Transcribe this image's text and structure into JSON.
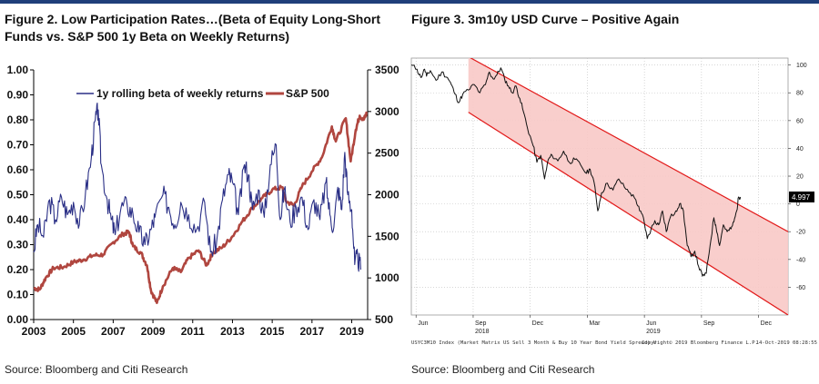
{
  "figure2": {
    "title": "Figure 2. Low Participation Rates…(Beta of Equity Long-Short Funds vs. S&P 500 1y Beta on Weekly Returns)",
    "source": "Source: Bloomberg and Citi Research"
  },
  "figure3": {
    "title": "Figure 3. 3m10y USD Curve – Positive Again",
    "source": "Source: Bloomberg and Citi Research",
    "footer_left": "USYC3M10 Index (Market Matrix US Sell 3 Month & Buy 10 Year Bond Yield Spread) U",
    "footer_mid": "Copyright© 2019 Bloomberg Finance L.P.",
    "footer_right": "14-Oct-2019 08:28:55",
    "last_value_label": "4.997"
  },
  "chart_data": [
    {
      "type": "line",
      "title": "Figure 2. Low Participation Rates…(Beta of Equity Long-Short Funds vs. S&P 500 1y Beta on Weekly Returns)",
      "x_ticks": [
        "2003",
        "2005",
        "2007",
        "2009",
        "2011",
        "2013",
        "2015",
        "2017",
        "2019"
      ],
      "xlim": [
        2003,
        2019.8
      ],
      "y_left": {
        "lim": [
          0,
          1
        ],
        "ticks": [
          "0.00",
          "0.10",
          "0.20",
          "0.30",
          "0.40",
          "0.50",
          "0.60",
          "0.70",
          "0.80",
          "0.90",
          "1.00"
        ]
      },
      "y_right": {
        "lim": [
          500,
          3500
        ],
        "ticks": [
          "500",
          "1000",
          "1500",
          "2000",
          "2500",
          "3000",
          "3500"
        ]
      },
      "series": [
        {
          "name": "1y rolling beta of weekly returns",
          "axis": "left",
          "color": "#2a2f86",
          "points": [
            [
              2003.0,
              0.27
            ],
            [
              2003.2,
              0.38
            ],
            [
              2003.5,
              0.33
            ],
            [
              2003.8,
              0.48
            ],
            [
              2004.1,
              0.4
            ],
            [
              2004.4,
              0.49
            ],
            [
              2004.7,
              0.42
            ],
            [
              2005.0,
              0.47
            ],
            [
              2005.3,
              0.38
            ],
            [
              2005.6,
              0.5
            ],
            [
              2005.9,
              0.65
            ],
            [
              2006.1,
              0.8
            ],
            [
              2006.25,
              0.84
            ],
            [
              2006.4,
              0.62
            ],
            [
              2006.7,
              0.48
            ],
            [
              2006.9,
              0.4
            ],
            [
              2007.1,
              0.34
            ],
            [
              2007.4,
              0.45
            ],
            [
              2007.7,
              0.46
            ],
            [
              2008.0,
              0.42
            ],
            [
              2008.3,
              0.35
            ],
            [
              2008.6,
              0.3
            ],
            [
              2008.9,
              0.36
            ],
            [
              2009.1,
              0.41
            ],
            [
              2009.5,
              0.5
            ],
            [
              2009.8,
              0.45
            ],
            [
              2010.1,
              0.38
            ],
            [
              2010.4,
              0.47
            ],
            [
              2010.8,
              0.42
            ],
            [
              2011.2,
              0.36
            ],
            [
              2011.6,
              0.47
            ],
            [
              2011.9,
              0.27
            ],
            [
              2012.2,
              0.31
            ],
            [
              2012.5,
              0.48
            ],
            [
              2012.8,
              0.58
            ],
            [
              2013.0,
              0.55
            ],
            [
              2013.3,
              0.42
            ],
            [
              2013.6,
              0.62
            ],
            [
              2013.8,
              0.58
            ],
            [
              2014.0,
              0.44
            ],
            [
              2014.3,
              0.52
            ],
            [
              2014.6,
              0.41
            ],
            [
              2014.9,
              0.62
            ],
            [
              2015.2,
              0.7
            ],
            [
              2015.4,
              0.4
            ],
            [
              2015.6,
              0.52
            ],
            [
              2015.9,
              0.39
            ],
            [
              2016.2,
              0.45
            ],
            [
              2016.5,
              0.49
            ],
            [
              2016.8,
              0.36
            ],
            [
              2017.1,
              0.48
            ],
            [
              2017.4,
              0.4
            ],
            [
              2017.7,
              0.55
            ],
            [
              2017.9,
              0.42
            ],
            [
              2018.1,
              0.37
            ],
            [
              2018.3,
              0.53
            ],
            [
              2018.5,
              0.44
            ],
            [
              2018.65,
              0.67
            ],
            [
              2018.8,
              0.5
            ],
            [
              2019.0,
              0.44
            ],
            [
              2019.15,
              0.22
            ],
            [
              2019.3,
              0.25
            ],
            [
              2019.45,
              0.2
            ]
          ]
        },
        {
          "name": "S&P 500",
          "axis": "right",
          "color": "#b0463f",
          "points": [
            [
              2003.0,
              880
            ],
            [
              2003.3,
              860
            ],
            [
              2003.6,
              1000
            ],
            [
              2004.0,
              1120
            ],
            [
              2004.5,
              1130
            ],
            [
              2005.0,
              1190
            ],
            [
              2005.5,
              1220
            ],
            [
              2006.0,
              1270
            ],
            [
              2006.5,
              1280
            ],
            [
              2007.0,
              1430
            ],
            [
              2007.5,
              1530
            ],
            [
              2007.8,
              1550
            ],
            [
              2008.0,
              1380
            ],
            [
              2008.4,
              1300
            ],
            [
              2008.7,
              1150
            ],
            [
              2008.9,
              850
            ],
            [
              2009.2,
              700
            ],
            [
              2009.5,
              900
            ],
            [
              2010.0,
              1120
            ],
            [
              2010.4,
              1070
            ],
            [
              2010.8,
              1240
            ],
            [
              2011.3,
              1330
            ],
            [
              2011.7,
              1150
            ],
            [
              2012.0,
              1300
            ],
            [
              2012.5,
              1370
            ],
            [
              2013.0,
              1500
            ],
            [
              2013.5,
              1680
            ],
            [
              2014.0,
              1840
            ],
            [
              2014.5,
              1960
            ],
            [
              2015.0,
              2060
            ],
            [
              2015.5,
              2090
            ],
            [
              2015.7,
              1920
            ],
            [
              2016.1,
              1870
            ],
            [
              2016.5,
              2100
            ],
            [
              2017.0,
              2280
            ],
            [
              2017.5,
              2450
            ],
            [
              2018.0,
              2820
            ],
            [
              2018.2,
              2640
            ],
            [
              2018.7,
              2920
            ],
            [
              2018.95,
              2400
            ],
            [
              2019.2,
              2780
            ],
            [
              2019.4,
              2950
            ],
            [
              2019.6,
              2900
            ],
            [
              2019.75,
              2980
            ]
          ]
        }
      ]
    },
    {
      "type": "line",
      "title": "Figure 3. 3m10y USD Curve – Positive Again",
      "x_ticks": [
        {
          "label": "Jun",
          "year": "",
          "t": 0.25
        },
        {
          "label": "Sep",
          "year": "2018",
          "t": 3.25
        },
        {
          "label": "Dec",
          "year": "",
          "t": 6.25
        },
        {
          "label": "Mar",
          "year": "",
          "t": 9.25
        },
        {
          "label": "Jun",
          "year": "2019",
          "t": 12.25
        },
        {
          "label": "Sep",
          "year": "",
          "t": 15.25
        },
        {
          "label": "Dec",
          "year": "",
          "t": 18.25
        }
      ],
      "xlim": [
        0,
        19.8
      ],
      "ylim": [
        -80,
        105
      ],
      "y_ticks": [
        100,
        80,
        60,
        40,
        20,
        0,
        -20,
        -40,
        -60
      ],
      "series": [
        {
          "name": "USYC3M10 Index",
          "color": "#111111",
          "points": [
            [
              0.0,
              100
            ],
            [
              0.3,
              97
            ],
            [
              0.5,
              91
            ],
            [
              0.7,
              97
            ],
            [
              0.8,
              92
            ],
            [
              1.0,
              96
            ],
            [
              1.3,
              89
            ],
            [
              1.6,
              95
            ],
            [
              1.9,
              91
            ],
            [
              2.1,
              86
            ],
            [
              2.3,
              79
            ],
            [
              2.5,
              73
            ],
            [
              2.7,
              79
            ],
            [
              3.0,
              82
            ],
            [
              3.3,
              86
            ],
            [
              3.6,
              80
            ],
            [
              3.9,
              86
            ],
            [
              4.1,
              95
            ],
            [
              4.3,
              90
            ],
            [
              4.5,
              93
            ],
            [
              4.7,
              98
            ],
            [
              4.9,
              90
            ],
            [
              5.1,
              85
            ],
            [
              5.3,
              80
            ],
            [
              5.5,
              85
            ],
            [
              5.7,
              76
            ],
            [
              5.9,
              66
            ],
            [
              6.1,
              55
            ],
            [
              6.4,
              42
            ],
            [
              6.6,
              30
            ],
            [
              6.8,
              35
            ],
            [
              7.0,
              18
            ],
            [
              7.2,
              32
            ],
            [
              7.4,
              35
            ],
            [
              7.7,
              31
            ],
            [
              8.0,
              38
            ],
            [
              8.3,
              30
            ],
            [
              8.6,
              32
            ],
            [
              8.9,
              28
            ],
            [
              9.2,
              22
            ],
            [
              9.4,
              25
            ],
            [
              9.6,
              16
            ],
            [
              9.8,
              -5
            ],
            [
              10.0,
              8
            ],
            [
              10.3,
              15
            ],
            [
              10.6,
              10
            ],
            [
              10.9,
              18
            ],
            [
              11.2,
              12
            ],
            [
              11.5,
              8
            ],
            [
              11.8,
              3
            ],
            [
              12.0,
              -5
            ],
            [
              12.2,
              -10
            ],
            [
              12.4,
              -25
            ],
            [
              12.6,
              -18
            ],
            [
              12.8,
              -12
            ],
            [
              13.0,
              -15
            ],
            [
              13.2,
              -5
            ],
            [
              13.4,
              -20
            ],
            [
              13.6,
              -10
            ],
            [
              13.9,
              -5
            ],
            [
              14.1,
              0
            ],
            [
              14.3,
              -5
            ],
            [
              14.5,
              -30
            ],
            [
              14.7,
              -38
            ],
            [
              14.9,
              -34
            ],
            [
              15.1,
              -45
            ],
            [
              15.3,
              -52
            ],
            [
              15.5,
              -50
            ],
            [
              15.7,
              -30
            ],
            [
              15.9,
              -10
            ],
            [
              16.0,
              -15
            ],
            [
              16.2,
              -30
            ],
            [
              16.4,
              -15
            ],
            [
              16.6,
              -20
            ],
            [
              16.8,
              -18
            ],
            [
              16.95,
              -13
            ],
            [
              17.1,
              -5
            ],
            [
              17.2,
              5
            ],
            [
              17.3,
              5
            ]
          ]
        }
      ],
      "channel": {
        "upper": [
          [
            3.0,
            106
          ],
          [
            19.8,
            -20
          ]
        ],
        "lower": [
          [
            3.0,
            66
          ],
          [
            19.8,
            -80
          ]
        ],
        "shade_from_t": 3.0,
        "color": "#e21a1a"
      }
    }
  ]
}
